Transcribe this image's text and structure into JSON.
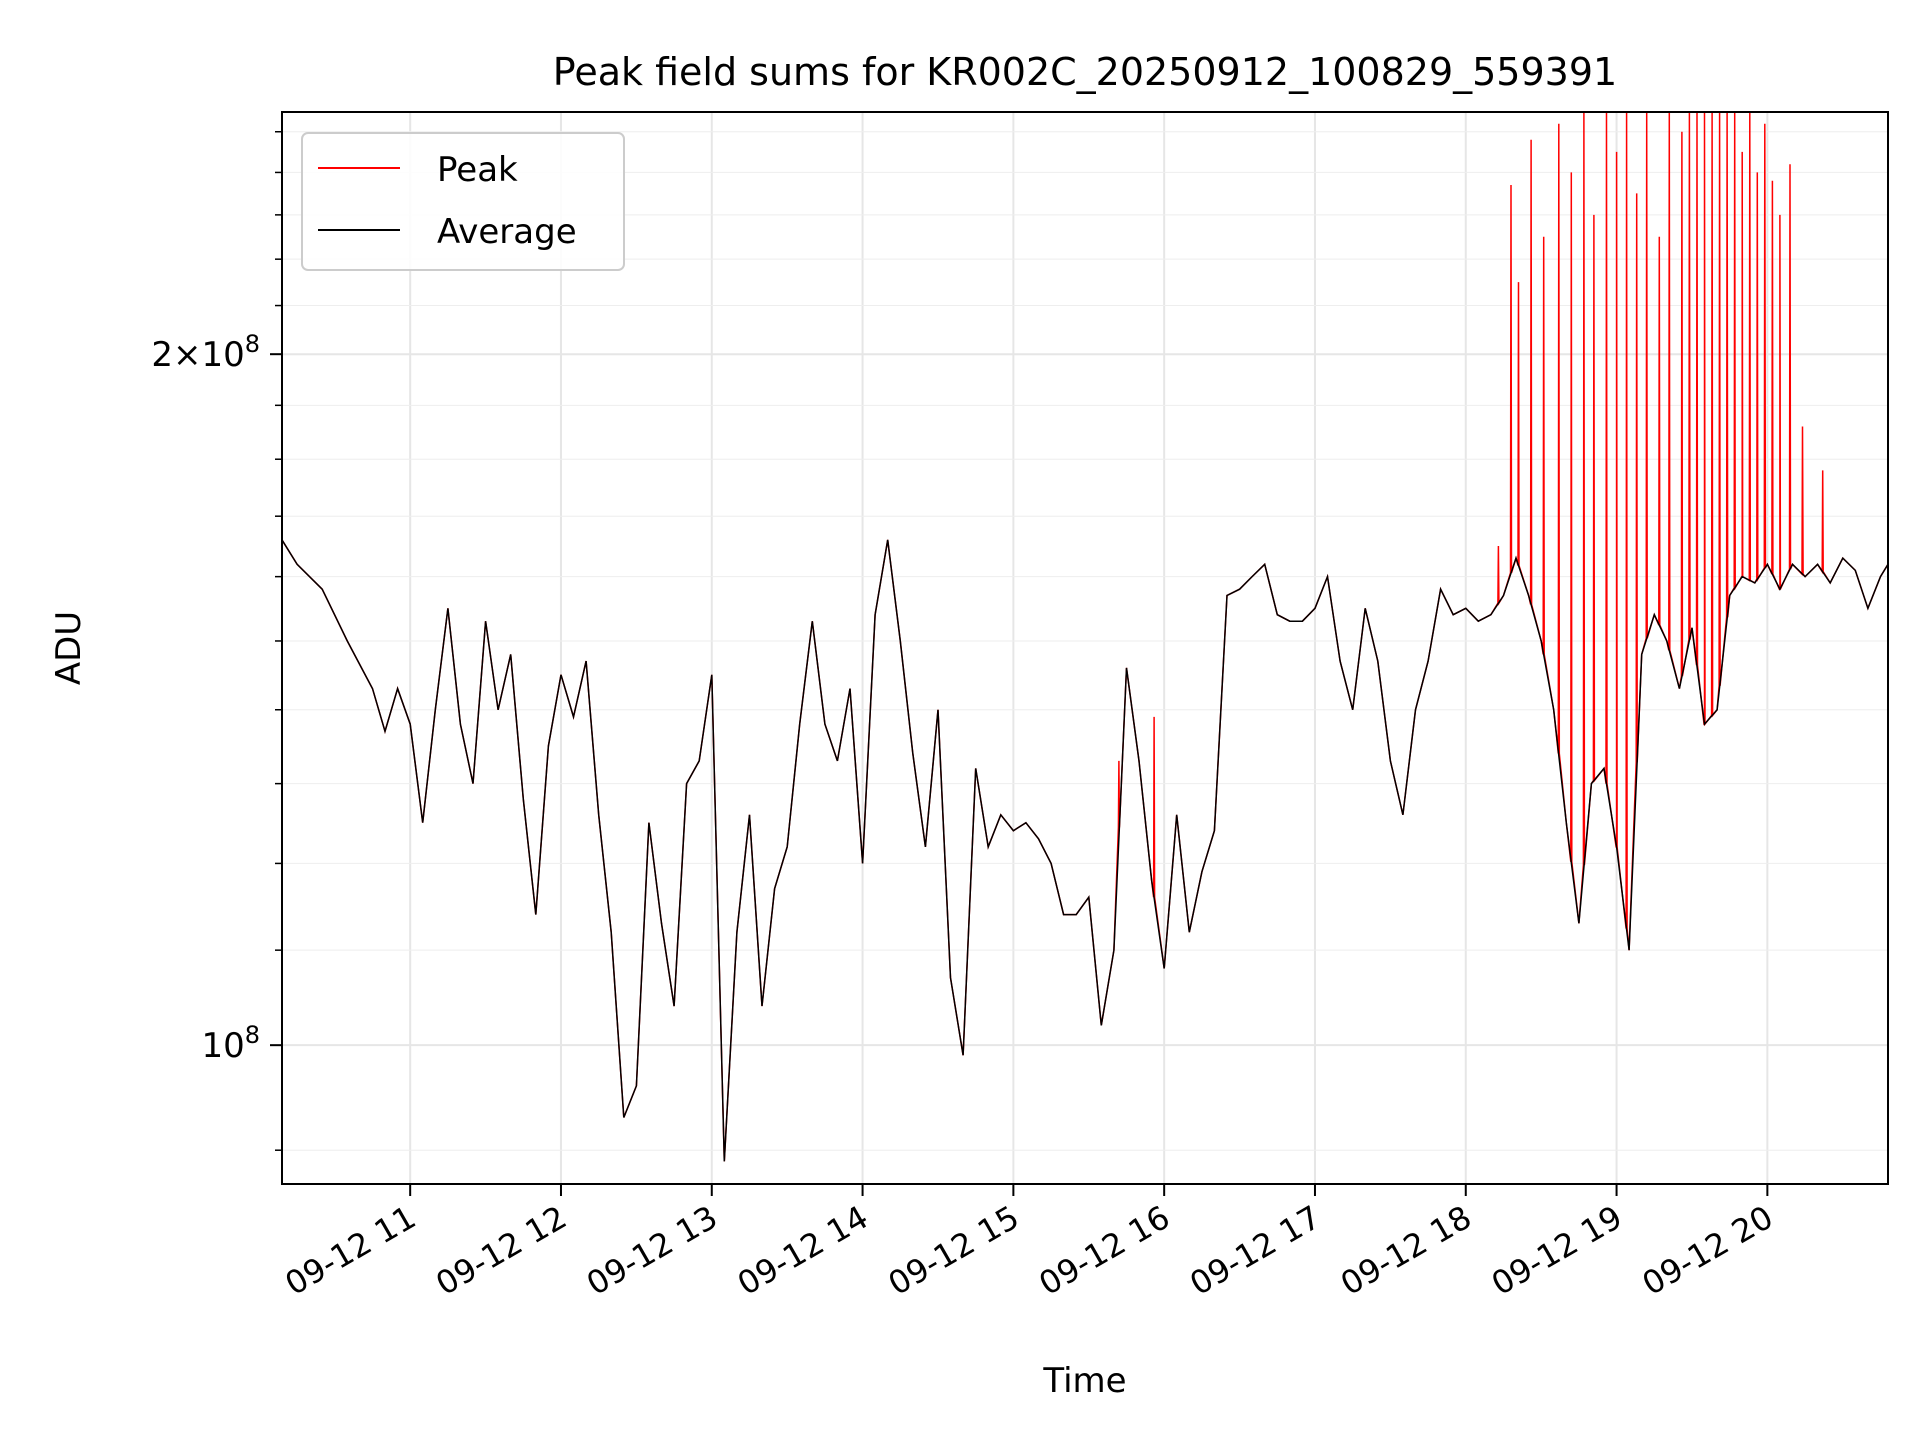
{
  "chart_data": {
    "type": "line",
    "title": "Peak field sums for KR002C_20250912_100829_559391",
    "xlabel": "Time",
    "ylabel": "ADU",
    "y_scale": "log",
    "ylim": [
      87000000,
      255000000
    ],
    "y_ticks": [
      {
        "value": 100000000,
        "base": "10",
        "exp": "8",
        "coef": ""
      },
      {
        "value": 200000000,
        "base": "10",
        "exp": "8",
        "coef": "2"
      }
    ],
    "x_range": [
      "2025-09-12T10:09",
      "2025-09-12T20:48"
    ],
    "x_ticks": [
      {
        "value": "2025-09-12T11:00",
        "label": "09-12 11"
      },
      {
        "value": "2025-09-12T12:00",
        "label": "09-12 12"
      },
      {
        "value": "2025-09-12T13:00",
        "label": "09-12 13"
      },
      {
        "value": "2025-09-12T14:00",
        "label": "09-12 14"
      },
      {
        "value": "2025-09-12T15:00",
        "label": "09-12 15"
      },
      {
        "value": "2025-09-12T16:00",
        "label": "09-12 16"
      },
      {
        "value": "2025-09-12T17:00",
        "label": "09-12 17"
      },
      {
        "value": "2025-09-12T18:00",
        "label": "09-12 18"
      },
      {
        "value": "2025-09-12T19:00",
        "label": "09-12 19"
      },
      {
        "value": "2025-09-12T20:00",
        "label": "09-12 20"
      }
    ],
    "grid": true,
    "legend_position": "top-left",
    "series": [
      {
        "name": "Peak",
        "color": "#ff0000"
      },
      {
        "name": "Average",
        "color": "#000000"
      }
    ],
    "x": [
      "10:09",
      "10:15",
      "10:25",
      "10:35",
      "10:45",
      "10:50",
      "10:55",
      "11:00",
      "11:05",
      "11:10",
      "11:15",
      "11:20",
      "11:25",
      "11:30",
      "11:35",
      "11:40",
      "11:45",
      "11:50",
      "11:55",
      "12:00",
      "12:05",
      "12:10",
      "12:15",
      "12:20",
      "12:25",
      "12:30",
      "12:35",
      "12:40",
      "12:45",
      "12:50",
      "12:55",
      "13:00",
      "13:05",
      "13:10",
      "13:15",
      "13:20",
      "13:25",
      "13:30",
      "13:35",
      "13:40",
      "13:45",
      "13:50",
      "13:55",
      "14:00",
      "14:05",
      "14:10",
      "14:15",
      "14:20",
      "14:25",
      "14:30",
      "14:35",
      "14:40",
      "14:45",
      "14:50",
      "14:55",
      "15:00",
      "15:05",
      "15:10",
      "15:15",
      "15:20",
      "15:25",
      "15:30",
      "15:35",
      "15:40",
      "15:45",
      "15:50",
      "15:55",
      "16:00",
      "16:05",
      "16:10",
      "16:15",
      "16:20",
      "16:25",
      "16:30",
      "16:35",
      "16:40",
      "16:45",
      "16:50",
      "16:55",
      "17:00",
      "17:05",
      "17:10",
      "17:15",
      "17:20",
      "17:25",
      "17:30",
      "17:35",
      "17:40",
      "17:45",
      "17:50",
      "17:55",
      "18:00",
      "18:05",
      "18:10",
      "18:15",
      "18:20",
      "18:25",
      "18:30",
      "18:35",
      "18:40",
      "18:45",
      "18:50",
      "18:55",
      "19:00",
      "19:05",
      "19:10",
      "19:15",
      "19:20",
      "19:25",
      "19:30",
      "19:35",
      "19:40",
      "19:45",
      "19:50",
      "19:55",
      "20:00",
      "20:05",
      "20:10",
      "20:15",
      "20:20",
      "20:25",
      "20:30",
      "20:35",
      "20:40",
      "20:45",
      "20:48"
    ],
    "average": [
      166000000,
      162000000,
      158000000,
      150000000,
      143000000,
      137000000,
      143000000,
      138000000,
      125000000,
      140000000,
      155000000,
      138000000,
      130000000,
      153000000,
      140000000,
      148000000,
      128000000,
      114000000,
      135000000,
      145000000,
      139000000,
      147000000,
      126000000,
      112000000,
      93000000,
      96000000,
      125000000,
      113000000,
      104000000,
      130000000,
      133000000,
      145000000,
      89000000,
      112000000,
      126000000,
      104000000,
      117000000,
      122000000,
      138000000,
      153000000,
      138000000,
      133000000,
      143000000,
      120000000,
      154000000,
      166000000,
      150000000,
      134000000,
      122000000,
      140000000,
      107000000,
      99000000,
      132000000,
      122000000,
      126000000,
      124000000,
      125000000,
      123000000,
      120000000,
      114000000,
      114000000,
      116000000,
      102000000,
      110000000,
      146000000,
      133000000,
      118000000,
      108000000,
      126000000,
      112000000,
      119000000,
      124000000,
      157000000,
      158000000,
      160000000,
      162000000,
      154000000,
      153000000,
      153000000,
      155000000,
      160000000,
      147000000,
      140000000,
      155000000,
      147000000,
      133000000,
      126000000,
      140000000,
      147000000,
      158000000,
      154000000,
      155000000,
      153000000,
      154000000,
      157000000,
      163000000,
      157000000,
      150000000,
      140000000,
      125000000,
      113000000,
      130000000,
      132000000,
      122000000,
      110000000,
      148000000,
      154000000,
      150000000,
      143000000,
      152000000,
      138000000,
      140000000,
      157000000,
      160000000,
      159000000,
      162000000,
      158000000,
      162000000,
      160000000,
      162000000,
      159000000,
      163000000,
      161000000,
      155000000,
      160000000,
      162000000
    ],
    "peak_spikes": [
      {
        "x": "15:42",
        "y": 133000000
      },
      {
        "x": "15:56",
        "y": 139000000
      },
      {
        "x": "18:13",
        "y": 165000000
      },
      {
        "x": "18:18",
        "y": 237000000
      },
      {
        "x": "18:21",
        "y": 215000000
      },
      {
        "x": "18:26",
        "y": 248000000
      },
      {
        "x": "18:31",
        "y": 225000000
      },
      {
        "x": "18:37",
        "y": 252000000
      },
      {
        "x": "18:42",
        "y": 240000000
      },
      {
        "x": "18:47",
        "y": 255000000
      },
      {
        "x": "18:51",
        "y": 230000000
      },
      {
        "x": "18:56",
        "y": 255000000
      },
      {
        "x": "19:00",
        "y": 245000000
      },
      {
        "x": "19:04",
        "y": 255000000
      },
      {
        "x": "19:08",
        "y": 235000000
      },
      {
        "x": "19:12",
        "y": 255000000
      },
      {
        "x": "19:17",
        "y": 225000000
      },
      {
        "x": "19:21",
        "y": 255000000
      },
      {
        "x": "19:26",
        "y": 250000000
      },
      {
        "x": "19:29",
        "y": 255000000
      },
      {
        "x": "19:32",
        "y": 255000000
      },
      {
        "x": "19:35",
        "y": 255000000
      },
      {
        "x": "19:38",
        "y": 255000000
      },
      {
        "x": "19:41",
        "y": 255000000
      },
      {
        "x": "19:44",
        "y": 255000000
      },
      {
        "x": "19:47",
        "y": 255000000
      },
      {
        "x": "19:50",
        "y": 245000000
      },
      {
        "x": "19:53",
        "y": 255000000
      },
      {
        "x": "19:56",
        "y": 240000000
      },
      {
        "x": "19:59",
        "y": 252000000
      },
      {
        "x": "20:02",
        "y": 238000000
      },
      {
        "x": "20:05",
        "y": 230000000
      },
      {
        "x": "20:09",
        "y": 242000000
      },
      {
        "x": "20:14",
        "y": 186000000
      },
      {
        "x": "20:22",
        "y": 178000000
      }
    ]
  }
}
